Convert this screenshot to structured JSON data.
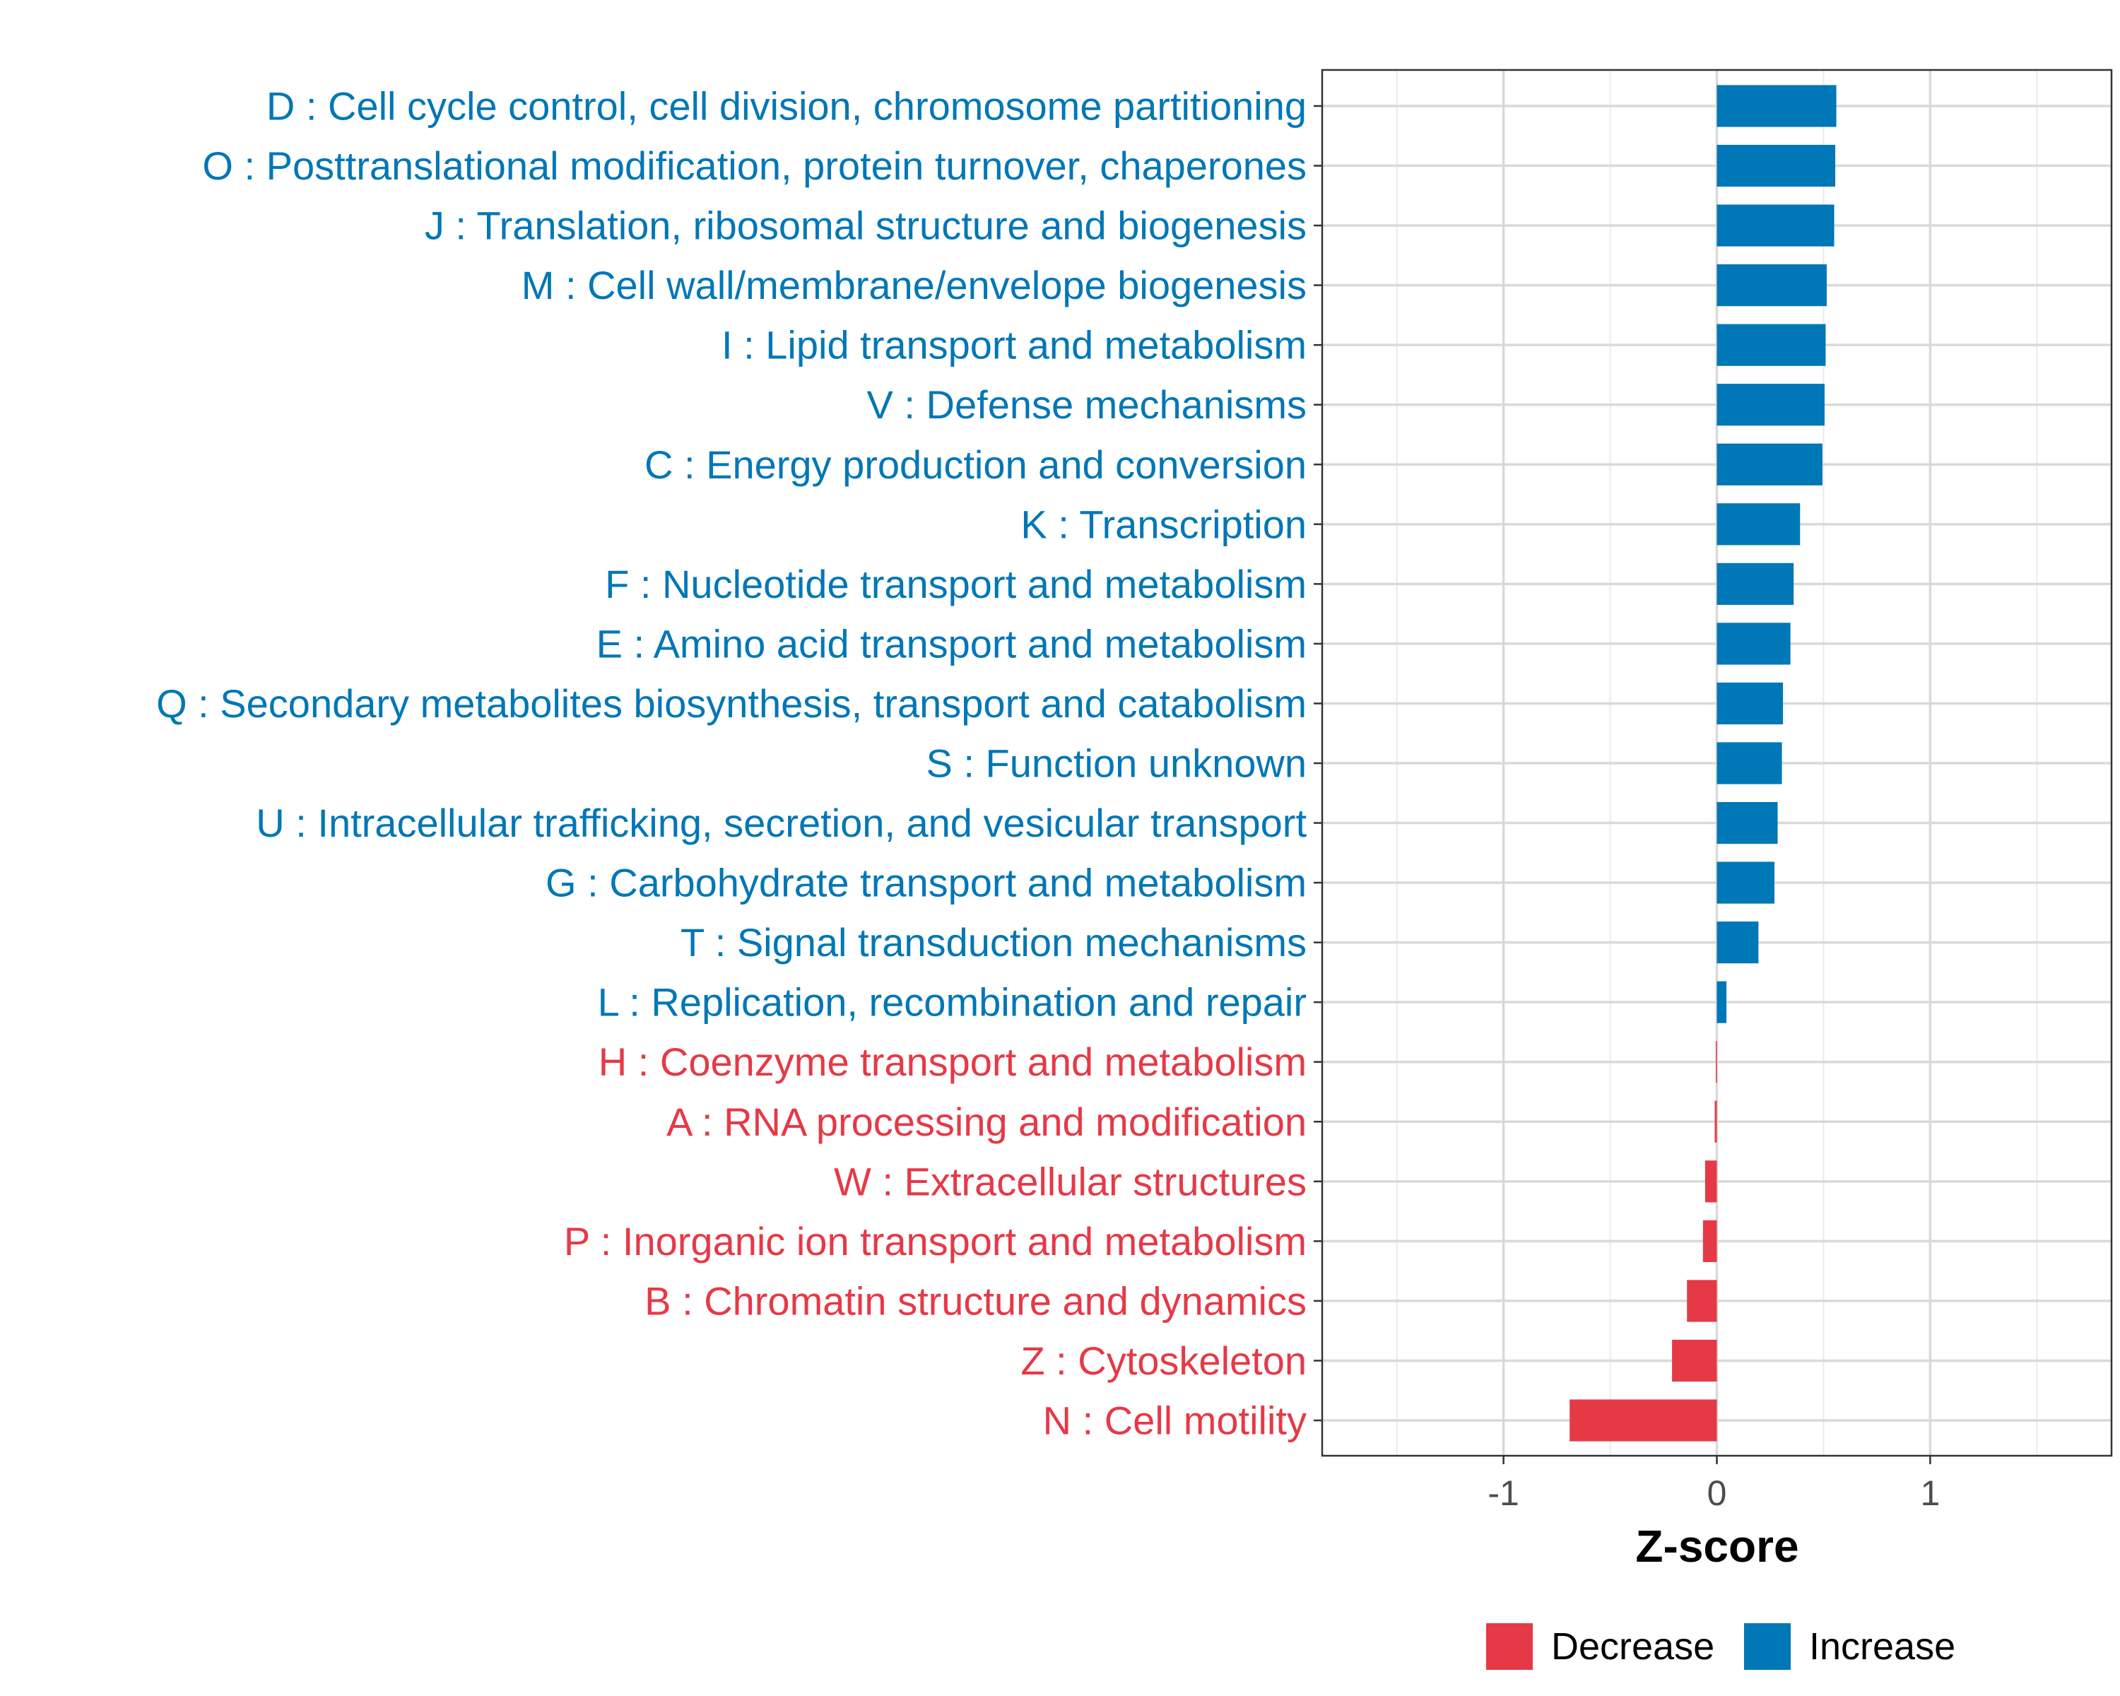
{
  "chart_data": {
    "type": "bar",
    "orientation": "horizontal",
    "title": "",
    "xlabel": "Z-score",
    "ylabel": "",
    "xlim": [
      -1.85,
      1.85
    ],
    "xticks": [
      -1,
      0,
      1
    ],
    "xtick_labels": [
      "-1",
      "0",
      "1"
    ],
    "grid": true,
    "legend_position": "bottom",
    "colors": {
      "Decrease": "#e63946",
      "Increase": "#0077b6"
    },
    "legend": [
      {
        "label": "Decrease",
        "color": "#e63946"
      },
      {
        "label": "Increase",
        "color": "#0077b6"
      }
    ],
    "categories": [
      "D : Cell cycle control, cell division, chromosome partitioning",
      "O : Posttranslational modification, protein turnover, chaperones",
      "J : Translation, ribosomal structure and biogenesis",
      "M : Cell wall/membrane/envelope biogenesis",
      "I : Lipid transport and metabolism",
      "V : Defense mechanisms",
      "C : Energy production and conversion",
      "K : Transcription",
      "F : Nucleotide transport and metabolism",
      "E : Amino acid transport and metabolism",
      "Q : Secondary metabolites biosynthesis, transport and catabolism",
      "S : Function unknown",
      "U : Intracellular trafficking, secretion, and vesicular transport",
      "G : Carbohydrate transport and metabolism",
      "T : Signal transduction mechanisms",
      "L : Replication, recombination and repair",
      "H : Coenzyme transport and metabolism",
      "A : RNA processing and modification",
      "W : Extracellular structures",
      "P : Inorganic ion transport and metabolism",
      "B : Chromatin structure and dynamics",
      "Z : Cytoskeleton",
      "N : Cell motility"
    ],
    "values": [
      0.56,
      0.555,
      0.55,
      0.515,
      0.51,
      0.505,
      0.495,
      0.39,
      0.36,
      0.345,
      0.31,
      0.305,
      0.285,
      0.27,
      0.195,
      0.045,
      -0.005,
      -0.01,
      -0.055,
      -0.065,
      -0.14,
      -0.21,
      -0.69
    ],
    "groups": [
      "Increase",
      "Increase",
      "Increase",
      "Increase",
      "Increase",
      "Increase",
      "Increase",
      "Increase",
      "Increase",
      "Increase",
      "Increase",
      "Increase",
      "Increase",
      "Increase",
      "Increase",
      "Increase",
      "Decrease",
      "Decrease",
      "Decrease",
      "Decrease",
      "Decrease",
      "Decrease",
      "Decrease"
    ]
  }
}
